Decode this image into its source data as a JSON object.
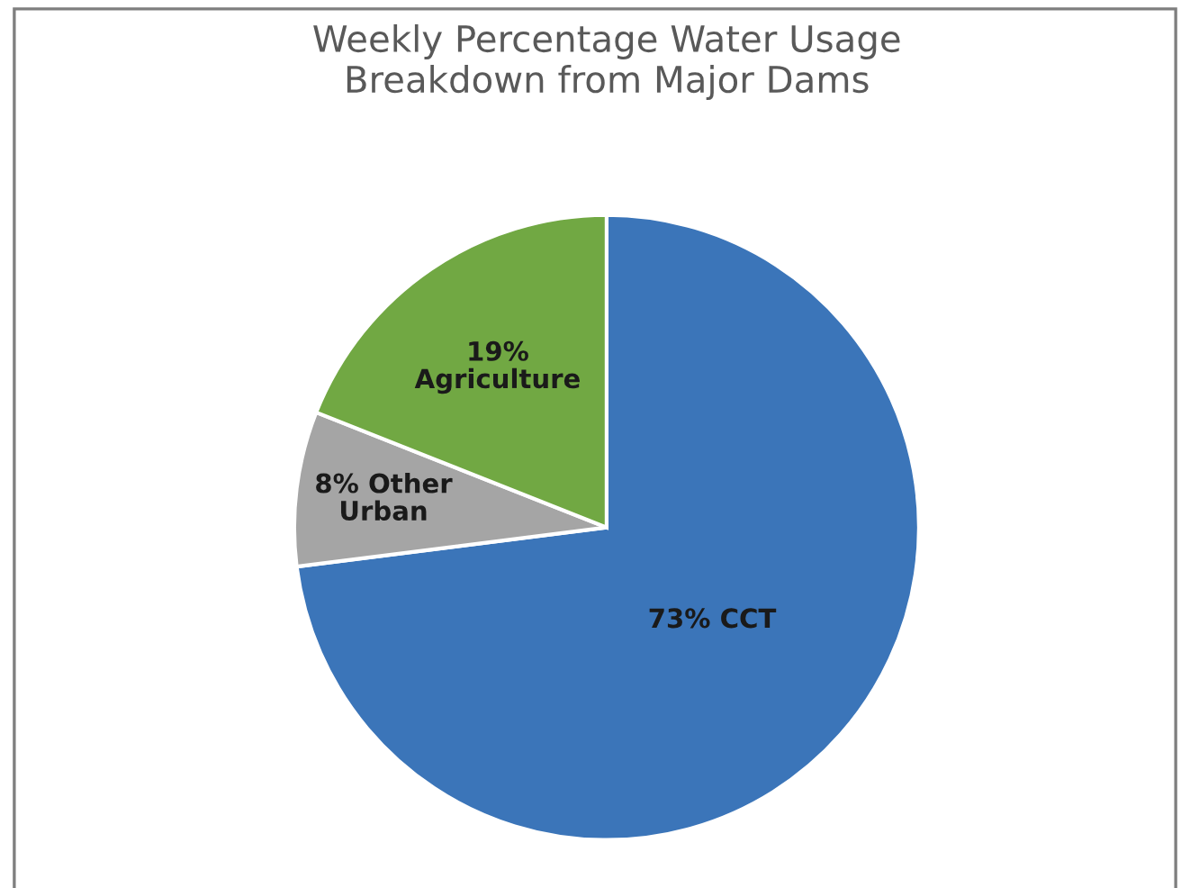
{
  "chart_data": {
    "type": "pie",
    "title": "Weekly Percentage Water Usage\nBreakdown from Major Dams",
    "categories": [
      "CCT",
      "Other\nUrban",
      "Agriculture"
    ],
    "values": [
      73,
      8,
      19
    ],
    "value_labels": [
      "73%",
      "8%",
      "19%"
    ],
    "colors": [
      "#3b75b9",
      "#a5a5a5",
      "#71a843"
    ],
    "legend": false
  }
}
